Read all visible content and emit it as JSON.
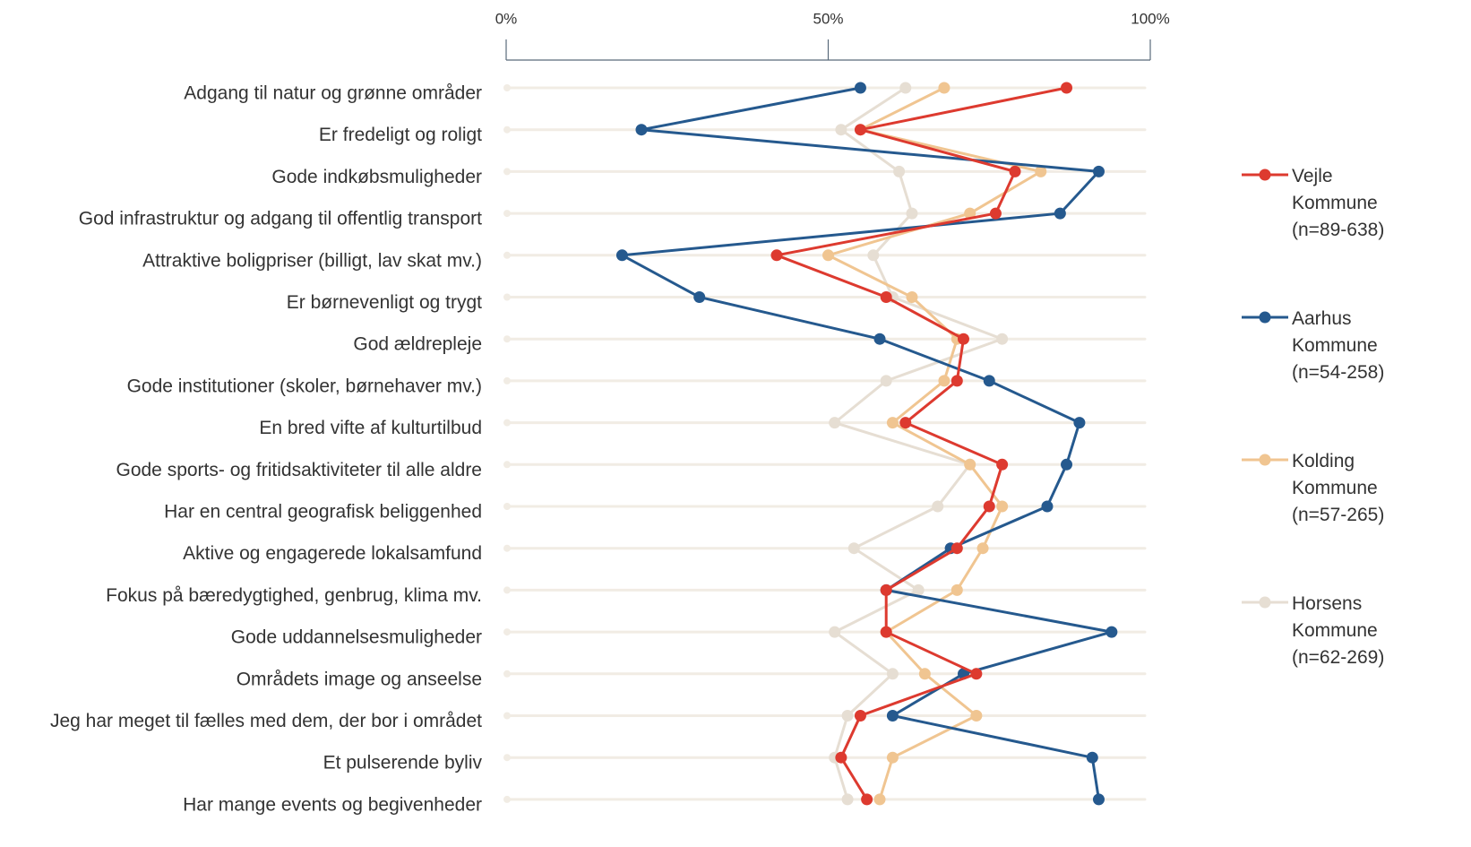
{
  "chart_data": {
    "type": "dot-line",
    "categories": [
      "Adgang til natur og grønne områder",
      "Er fredeligt og roligt",
      "Gode indkøbsmuligheder",
      "God infrastruktur og adgang til offentlig transport",
      "Attraktive boligpriser (billigt, lav skat mv.)",
      "Er børnevenligt og trygt",
      "God ældrepleje",
      "Gode institutioner (skoler, børnehaver mv.)",
      "En bred vifte af kulturtilbud",
      "Gode sports- og fritidsaktiviteter til alle aldre",
      "Har en central geografisk beliggenhed",
      "Aktive og engagerede lokalsamfund",
      "Fokus på bæredygtighed, genbrug, klima mv.",
      "Gode uddannelsesmuligheder",
      "Områdets image og anseelse",
      "Jeg har meget til fælles med dem, der bor i området",
      "Et pulserende byliv",
      "Har mange events og begivenheder"
    ],
    "series": [
      {
        "name": "Horsens Kommune (n=62-269)",
        "color": "#e6ded3",
        "values": [
          62,
          52,
          61,
          63,
          57,
          60,
          77,
          59,
          51,
          72,
          67,
          54,
          64,
          51,
          60,
          53,
          51,
          53
        ]
      },
      {
        "name": "Kolding Kommune (n=57-265)",
        "color": "#f0c591",
        "values": [
          68,
          55,
          83,
          72,
          50,
          63,
          70,
          68,
          60,
          72,
          77,
          74,
          70,
          59,
          65,
          73,
          60,
          58
        ]
      },
      {
        "name": "Aarhus Kommune (n=54-258)",
        "color": "#25598e",
        "values": [
          55,
          21,
          92,
          86,
          18,
          30,
          58,
          75,
          89,
          87,
          84,
          69,
          59,
          94,
          71,
          60,
          91,
          92
        ]
      },
      {
        "name": "Vejle Kommune (n=89-638)",
        "color": "#dd3a2f",
        "values": [
          87,
          55,
          79,
          76,
          42,
          59,
          71,
          70,
          62,
          77,
          75,
          70,
          59,
          59,
          73,
          55,
          52,
          56
        ]
      }
    ],
    "legend_order": [
      3,
      2,
      1,
      0
    ],
    "xlim": [
      0,
      100
    ],
    "xticks": [
      {
        "value": 0,
        "label": "0%"
      },
      {
        "value": 50,
        "label": "50%"
      },
      {
        "value": 100,
        "label": "100%"
      }
    ]
  }
}
